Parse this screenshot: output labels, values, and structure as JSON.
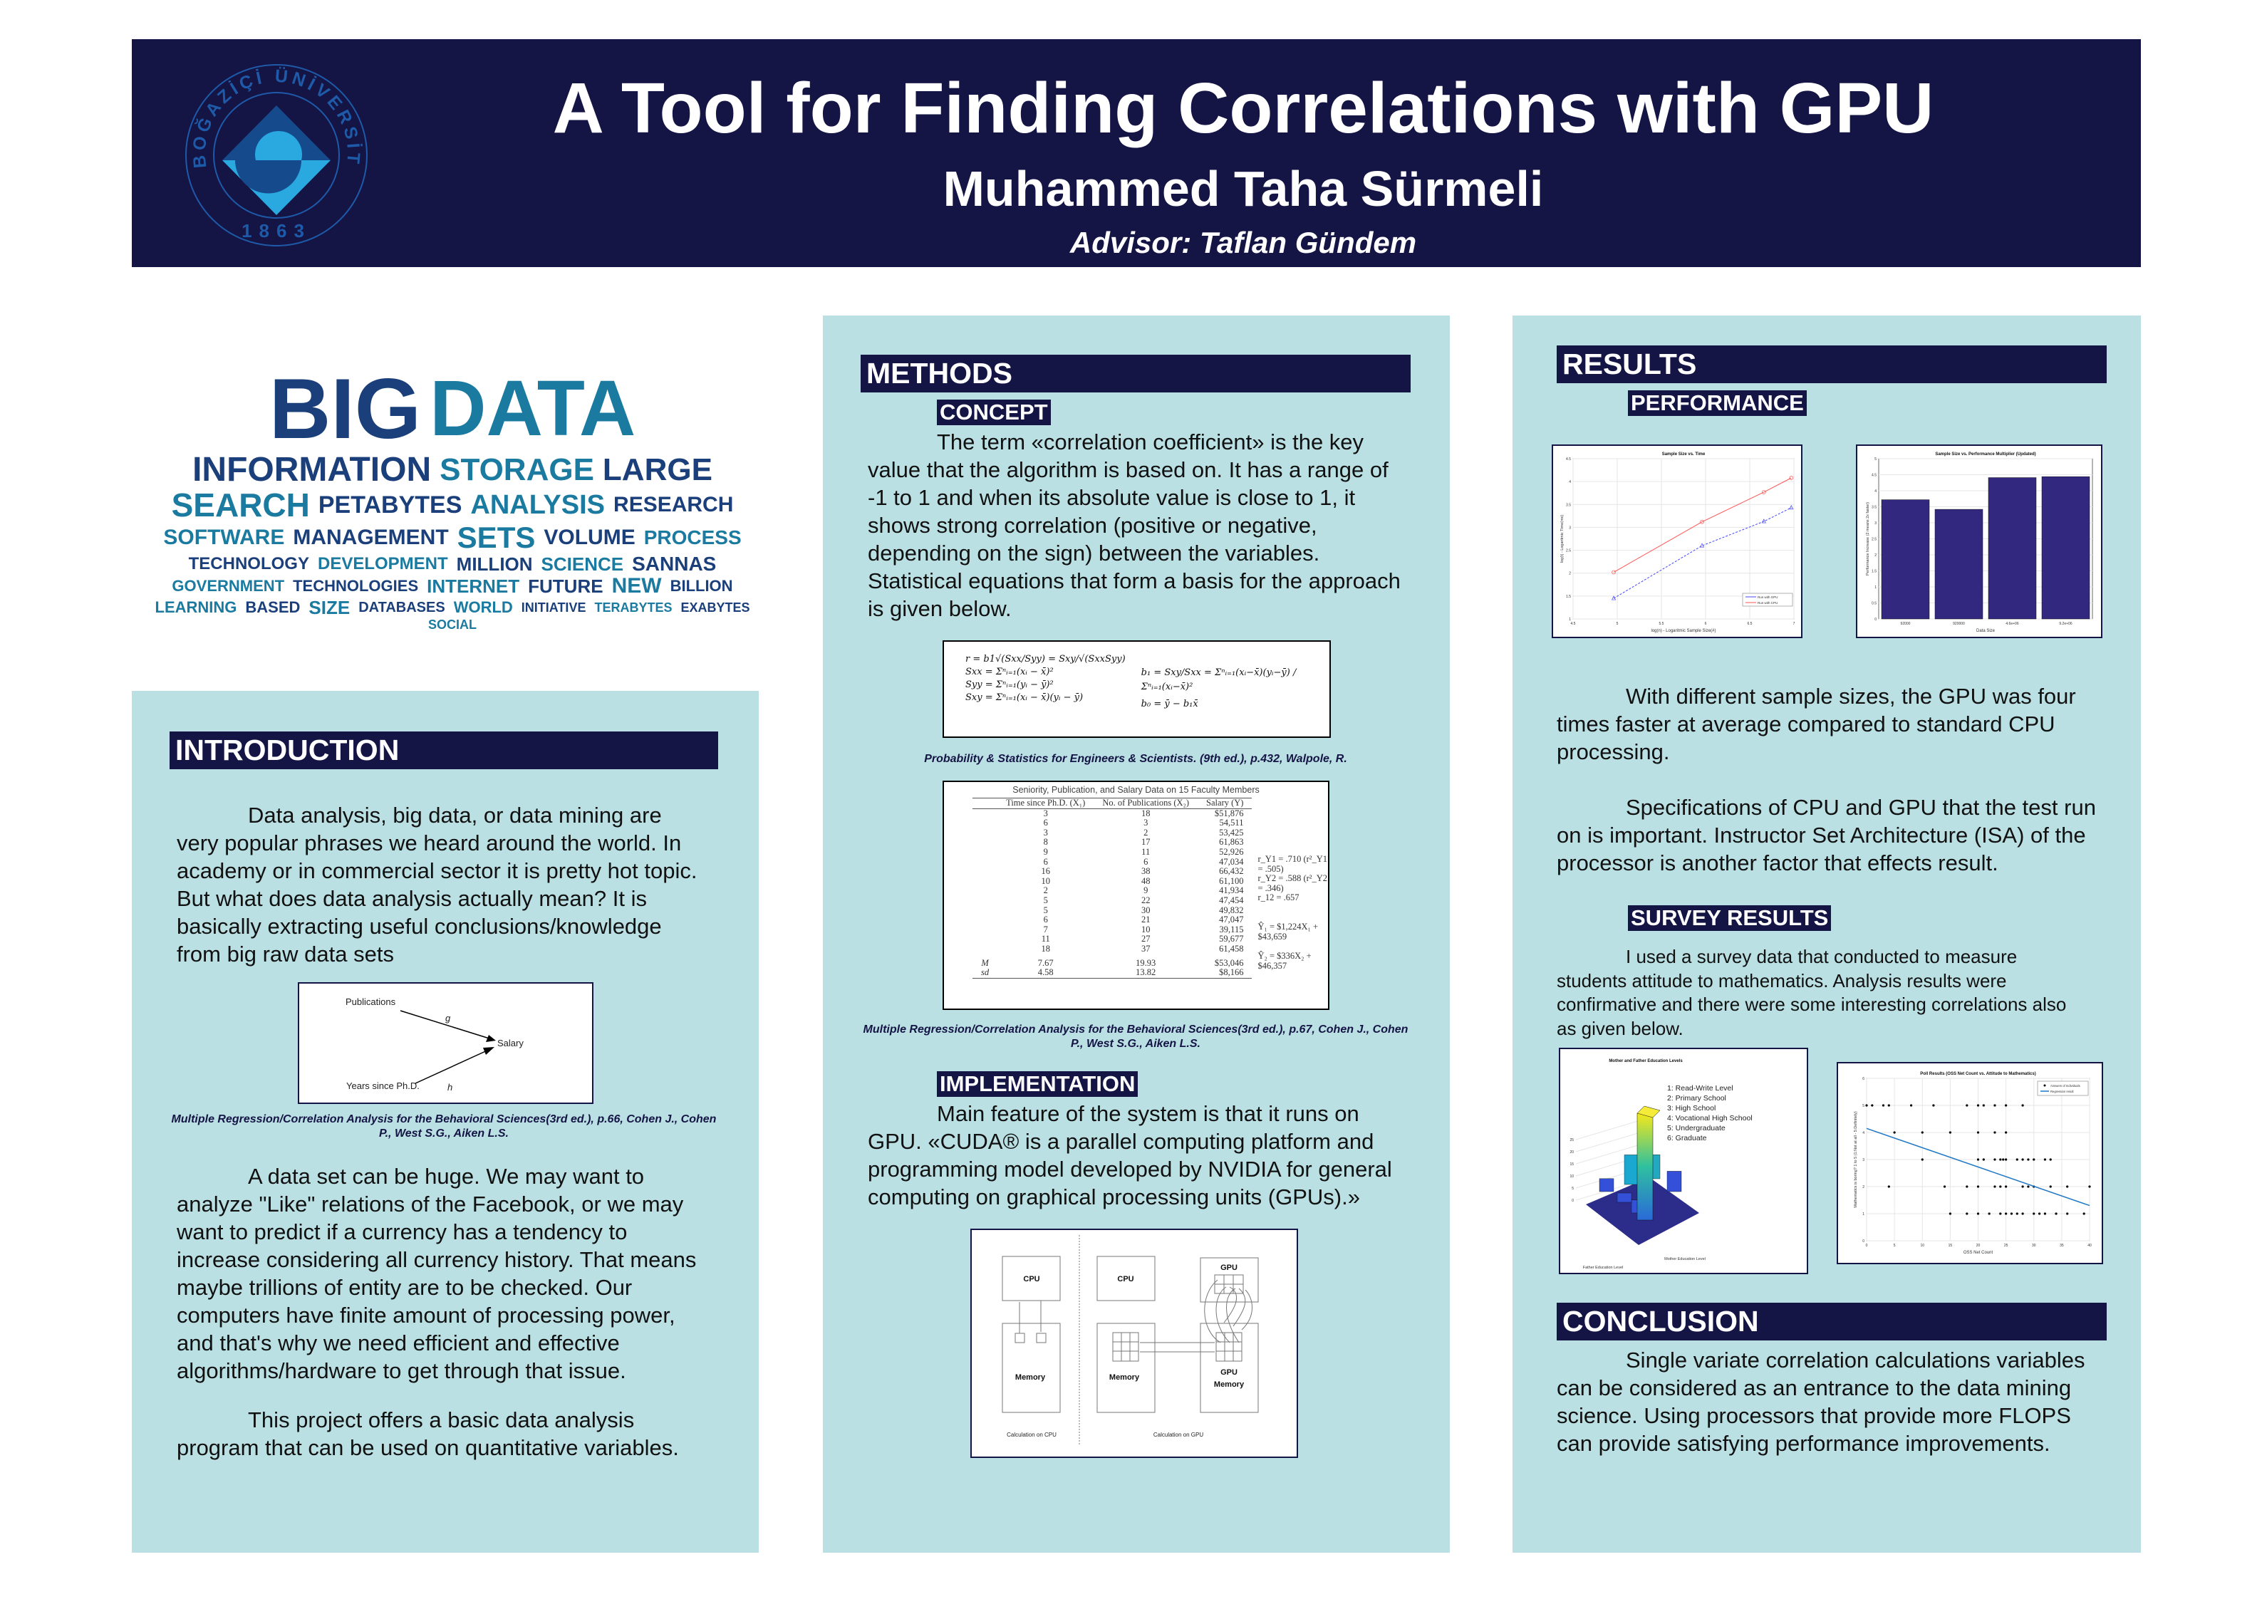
{
  "header": {
    "title": "A Tool for Finding Correlations with GPU",
    "author": "Muhammed Taha Sürmeli",
    "advisor": "Advisor: Taflan Gündem",
    "logo_text": "BOĞAZİÇİ ÜNİVERSİTESİ",
    "logo_year": "1863"
  },
  "colors": {
    "navy": "#141445",
    "panel": "#bae0e3",
    "cpu_line": "#ff5555",
    "gpu_line": "#4444ff",
    "bars": "#33287f",
    "regression": "#1f77c4"
  },
  "wordcloud": [
    "BIG",
    "DATA",
    "INFORMATION",
    "STORAGE",
    "LARGE",
    "SEARCH",
    "PETABYTES",
    "ANALYSIS",
    "RESEARCH",
    "SOFTWARE",
    "MANAGEMENT",
    "SETS",
    "VOLUME",
    "PROCESS",
    "TECHNOLOGY",
    "DEVELOPMENT",
    "MILLION",
    "SCIENCE",
    "SANNAS",
    "GOVERNMENT",
    "TECHNOLOGIES",
    "INTERNET",
    "FUTURE",
    "NEW",
    "BILLION",
    "LEARNING",
    "BASED",
    "SIZE",
    "DATABASES",
    "WORLD",
    "INITIATIVE",
    "TERABYTES",
    "EXABYTES",
    "SOCIAL"
  ],
  "introduction": {
    "heading": "INTRODUCTION",
    "p1": "Data analysis, big data, or data mining are very popular phrases we heard around the world. In academy or in commercial sector it is pretty hot topic. But what does data analysis actually mean? It is basically extracting useful conclusions/knowledge from big raw data sets",
    "diagram": {
      "publications": "Publications",
      "years": "Years since Ph.D.",
      "salary": "Salary",
      "g": "g",
      "h": "h"
    },
    "caption": "Multiple Regression/Correlation Analysis for the Behavioral Sciences(3rd ed.), p.66, Cohen J., Cohen P., West S.G., Aiken L.S.",
    "p2": "A data set can be huge. We may want to analyze \"Like\" relations of the Facebook, or we may want to predict if a currency has a tendency to increase considering all currency history. That means maybe trillions of entity are to be checked. Our computers have finite amount of processing power, and that's why we need efficient and effective algorithms/hardware to get through that issue.",
    "p3": "This project offers a basic data analysis program that can be used on quantitative variables."
  },
  "methods": {
    "heading": "METHODS",
    "concept_label": "CONCEPT",
    "concept_text": "The term «correlation coefficient» is the key value that the algorithm is based on. It has a range of -1 to 1 and when its absolute value is close to 1, it shows strong correlation (positive or negative, depending on the sign) between the variables. Statistical equations that form a basis for the approach is given below.",
    "formulas": [
      "r = b1√(Sxx/Syy) = Sxy/√(SxxSyy)",
      "Sxx = Σⁿᵢ₌₁(xᵢ − x̄)²",
      "Syy = Σⁿᵢ₌₁(yᵢ − ȳ)²",
      "Sxy = Σⁿᵢ₌₁(xᵢ − x̄)(yᵢ − ȳ)",
      "b₁ = Sxy/Sxx = Σⁿᵢ₌₁(xᵢ−x̄)(yᵢ−ȳ) / Σⁿᵢ₌₁(xᵢ−x̄)²",
      "b₀ = ȳ − b₁x̄"
    ],
    "formula_caption": "Probability & Statistics for Engineers & Scientists. (9th ed.), p.432, Walpole, R.",
    "table": {
      "title": "Seniority, Publication, and Salary Data on 15 Faculty Members",
      "headers": [
        "Time since Ph.D. (X₁)",
        "No. of Publications (X₂)",
        "Salary (Y)"
      ],
      "rows": [
        [
          "3",
          "18",
          "$51,876"
        ],
        [
          "6",
          "3",
          "54,511"
        ],
        [
          "3",
          "2",
          "53,425"
        ],
        [
          "8",
          "17",
          "61,863"
        ],
        [
          "9",
          "11",
          "52,926"
        ],
        [
          "6",
          "6",
          "47,034"
        ],
        [
          "16",
          "38",
          "66,432"
        ],
        [
          "10",
          "48",
          "61,100"
        ],
        [
          "2",
          "9",
          "41,934"
        ],
        [
          "5",
          "22",
          "47,454"
        ],
        [
          "5",
          "30",
          "49,832"
        ],
        [
          "6",
          "21",
          "47,047"
        ],
        [
          "7",
          "10",
          "39,115"
        ],
        [
          "11",
          "27",
          "59,677"
        ],
        [
          "18",
          "37",
          "61,458"
        ]
      ],
      "stats": [
        [
          "M",
          "7.67",
          "19.93",
          "$53,046"
        ],
        [
          "sd",
          "4.58",
          "13.82",
          "$8,166"
        ]
      ],
      "notes": [
        "r_Y1 = .710 (r²_Y1 = .505)",
        "r_Y2 = .588 (r²_Y2 = .346)",
        "r_12 = .657",
        "Ŷ₁ = $1,224X₁ + $43,659",
        "Ŷ₂ = $336X₂ + $46,357"
      ]
    },
    "table_caption": "Multiple Regression/Correlation Analysis for the Behavioral Sciences(3rd ed.), p.67, Cohen J., Cohen P., West S.G., Aiken L.S.",
    "impl_label": "IMPLEMENTATION",
    "impl_text": "Main feature of the system is that it runs on GPU. «CUDA® is a parallel computing platform and programming model developed by NVIDIA for general computing on graphical processing units (GPUs).»",
    "impl_diagram": {
      "cpu": "CPU",
      "memory": "Memory",
      "gpu": "GPU",
      "gpu_memory_1": "GPU",
      "gpu_memory_2": "Memory",
      "cap_cpu": "Calculation on CPU",
      "cap_gpu": "Calculation on GPU"
    }
  },
  "results": {
    "heading": "RESULTS",
    "performance_label": "PERFORMANCE",
    "p1": "With different sample sizes, the GPU was four times faster at average compared to standard CPU processing.",
    "p2": "Specifications of CPU and GPU that the test run on is important. Instructor Set Architecture (ISA) of the processor is another factor that effects result.",
    "survey_label": "SURVEY RESULTS",
    "survey_text": "I used a survey data that conducted to measure students attitude to mathematics. Analysis results were confirmative and there were some interesting correlations also as given below.",
    "edu_chart": {
      "title": "Mother and Father Education Levels",
      "legend": [
        "1: Read-Write Level",
        "2: Primary School",
        "3: High School",
        "4: Vocational High School",
        "5: Undergraduate",
        "6: Graduate"
      ],
      "xlabel": "Mother Education Level",
      "ylabel": "Father Education Level",
      "zticks": [
        "0",
        "5",
        "10",
        "15",
        "20",
        "25"
      ]
    }
  },
  "conclusion": {
    "heading": "CONCLUSION",
    "text": "Single variate correlation calculations variables can be considered as an entrance to the data mining science. Using processors that provide more FLOPS can provide satisfying performance improvements."
  },
  "chart_data": [
    {
      "type": "line",
      "title": "Sample Size vs. Time",
      "xlabel": "log(n) - Logaritmic Sample Size(#)",
      "ylabel": "log(t) - Logaritmic Time(ms)",
      "xlim": [
        4.5,
        7
      ],
      "ylim": [
        1,
        4.5
      ],
      "xticks": [
        4.5,
        5,
        5.5,
        6,
        6.5,
        7
      ],
      "yticks": [
        1,
        1.5,
        2,
        2.5,
        3,
        3.5,
        4,
        4.5
      ],
      "grid": true,
      "legend": "bottom-right",
      "series": [
        {
          "name": "Run with GPU",
          "x": [
            4.96,
            5.96,
            6.66,
            6.97
          ],
          "y": [
            1.45,
            2.6,
            3.13,
            3.43
          ]
        },
        {
          "name": "Run with CPU",
          "x": [
            4.96,
            5.96,
            6.66,
            6.97
          ],
          "y": [
            2.02,
            3.12,
            3.77,
            4.08
          ]
        }
      ]
    },
    {
      "type": "bar",
      "title": "Sample Size vs. Performance Multiplier (Updated)",
      "xlabel": "Data Size",
      "ylabel": "Performance Increase (2 means 2x faster)",
      "categories": [
        "92000",
        "920000",
        "4.6e+06",
        "9.2e+06"
      ],
      "values": [
        3.72,
        3.42,
        4.41,
        4.44
      ],
      "ylim": [
        0,
        5
      ],
      "yticks": [
        0,
        0.5,
        1,
        1.5,
        2,
        2.5,
        3,
        3.5,
        4,
        4.5,
        5
      ],
      "grid": true
    },
    {
      "type": "scatter",
      "title": "Poll Results (OSS Net Count vs. Attitude to Mathematics)",
      "xlabel": "OSS Net Count",
      "ylabel": "Mathematics is boring? 1 to 5 (1:Not at all - 5:Definitely)",
      "xlim": [
        0,
        40
      ],
      "ylim": [
        0,
        6
      ],
      "xticks": [
        0,
        5,
        10,
        15,
        20,
        25,
        30,
        35,
        40
      ],
      "yticks": [
        0,
        1,
        2,
        3,
        4,
        5,
        6
      ],
      "grid": true,
      "legend": "top-right",
      "series": [
        {
          "name": "Answers of Individuals",
          "points": [
            [
              0,
              5
            ],
            [
              1,
              5
            ],
            [
              3,
              5
            ],
            [
              4,
              5
            ],
            [
              8,
              5
            ],
            [
              12,
              5
            ],
            [
              18,
              5
            ],
            [
              20,
              5
            ],
            [
              21,
              5
            ],
            [
              23,
              5
            ],
            [
              25,
              5
            ],
            [
              28,
              5
            ],
            [
              5,
              4
            ],
            [
              10,
              4
            ],
            [
              15,
              4
            ],
            [
              20,
              4
            ],
            [
              23,
              4
            ],
            [
              25,
              4
            ],
            [
              10,
              3
            ],
            [
              20,
              3
            ],
            [
              21,
              3
            ],
            [
              23,
              3
            ],
            [
              24,
              3
            ],
            [
              24.5,
              3
            ],
            [
              25,
              3
            ],
            [
              27,
              3
            ],
            [
              28,
              3
            ],
            [
              29,
              3
            ],
            [
              30,
              3
            ],
            [
              32,
              3
            ],
            [
              33,
              3
            ],
            [
              4,
              2
            ],
            [
              14,
              2
            ],
            [
              18,
              2
            ],
            [
              20,
              2
            ],
            [
              23,
              2
            ],
            [
              24,
              2
            ],
            [
              25,
              2
            ],
            [
              28,
              2
            ],
            [
              29,
              2
            ],
            [
              30,
              2
            ],
            [
              33,
              2
            ],
            [
              36,
              2
            ],
            [
              40,
              2
            ],
            [
              15,
              1
            ],
            [
              18,
              1
            ],
            [
              20,
              1
            ],
            [
              22,
              1
            ],
            [
              24,
              1
            ],
            [
              25,
              1
            ],
            [
              26,
              1
            ],
            [
              27,
              1
            ],
            [
              28,
              1
            ],
            [
              30,
              1
            ],
            [
              31,
              1
            ],
            [
              32,
              1
            ],
            [
              34,
              1
            ],
            [
              36,
              1
            ],
            [
              39,
              1
            ]
          ]
        },
        {
          "name": "Regression result",
          "x": [
            0,
            40
          ],
          "y": [
            4.15,
            1.3
          ]
        }
      ]
    }
  ]
}
